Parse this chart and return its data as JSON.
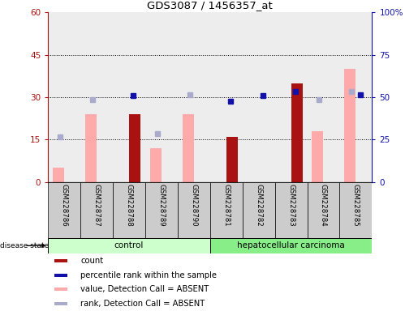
{
  "title": "GDS3087 / 1456357_at",
  "samples": [
    "GSM228786",
    "GSM228787",
    "GSM228788",
    "GSM228789",
    "GSM228790",
    "GSM228781",
    "GSM228782",
    "GSM228783",
    "GSM228784",
    "GSM228785"
  ],
  "groups": [
    "control",
    "control",
    "control",
    "control",
    "control",
    "hepatocellular carcinoma",
    "hepatocellular carcinoma",
    "hepatocellular carcinoma",
    "hepatocellular carcinoma",
    "hepatocellular carcinoma"
  ],
  "count": [
    null,
    null,
    24,
    null,
    null,
    16,
    null,
    35,
    null,
    null
  ],
  "percentile_rank": [
    null,
    null,
    30.5,
    null,
    null,
    28.5,
    30.5,
    32,
    null,
    31
  ],
  "value_absent": [
    5,
    24,
    null,
    12,
    24,
    null,
    null,
    null,
    18,
    40
  ],
  "rank_absent": [
    16,
    29,
    null,
    17,
    31,
    null,
    null,
    null,
    29,
    32
  ],
  "ylim_left": [
    0,
    60
  ],
  "ylim_right": [
    0,
    100
  ],
  "yticks_left": [
    0,
    15,
    30,
    45,
    60
  ],
  "yticks_right": [
    0,
    25,
    50,
    75,
    100
  ],
  "yticklabels_left": [
    "0",
    "15",
    "30",
    "45",
    "60"
  ],
  "yticklabels_right": [
    "0",
    "25",
    "50",
    "75",
    "100%"
  ],
  "color_count": "#aa1111",
  "color_percentile": "#1111aa",
  "color_value_absent": "#ffaaaa",
  "color_rank_absent": "#aaaacc",
  "color_control_bg": "#ccffcc",
  "color_hcc_bg": "#88ee88",
  "color_sample_bg": "#cccccc",
  "legend_labels": [
    "count",
    "percentile rank within the sample",
    "value, Detection Call = ABSENT",
    "rank, Detection Call = ABSENT"
  ],
  "disease_state_label": "disease state"
}
